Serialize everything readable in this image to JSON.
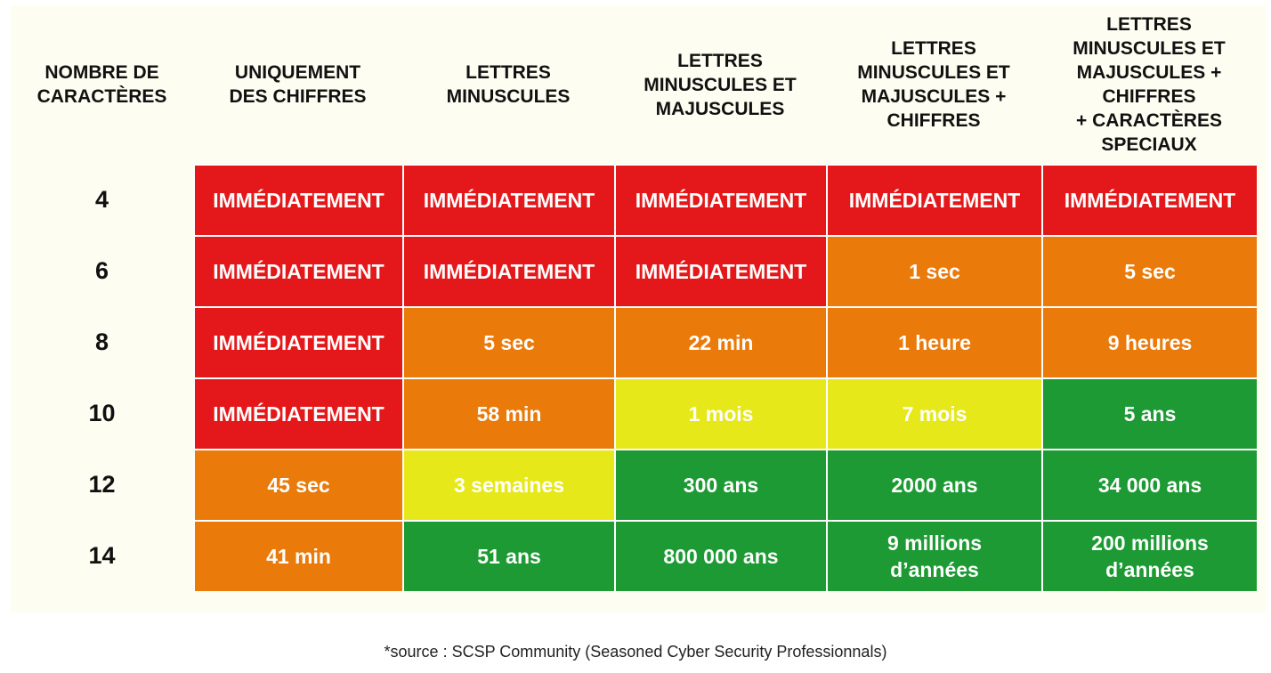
{
  "header": {
    "col0": "NOMBRE DE\nCARACTÈRES",
    "col1": "UNIQUEMENT\nDES CHIFFRES",
    "col2": "LETTRES\nMINUSCULES",
    "col3": "LETTRES\nMINUSCULES ET\nMAJUSCULES",
    "col4": "LETTRES\nMINUSCULES ET\nMAJUSCULES +\nCHIFFRES",
    "col5": "LETTRES\nMINUSCULES ET\nMAJUSCULES +\nCHIFFRES\n+ CARACTÈRES\nSPECIAUX"
  },
  "rows": [
    {
      "chars": "4",
      "c1": "IMMÉDIATEMENT",
      "c2": "IMMÉDIATEMENT",
      "c3": "IMMÉDIATEMENT",
      "c4": "IMMÉDIATEMENT",
      "c5": "IMMÉDIATEMENT"
    },
    {
      "chars": "6",
      "c1": "IMMÉDIATEMENT",
      "c2": "IMMÉDIATEMENT",
      "c3": "IMMÉDIATEMENT",
      "c4": "1 sec",
      "c5": "5 sec"
    },
    {
      "chars": "8",
      "c1": "IMMÉDIATEMENT",
      "c2": "5 sec",
      "c3": "22 min",
      "c4": "1 heure",
      "c5": "9 heures"
    },
    {
      "chars": "10",
      "c1": "IMMÉDIATEMENT",
      "c2": "58 min",
      "c3": "1 mois",
      "c4": "7 mois",
      "c5": "5 ans"
    },
    {
      "chars": "12",
      "c1": "45 sec",
      "c2": "3 semaines",
      "c3": "300 ans",
      "c4": "2000 ans",
      "c5": "34 000 ans"
    },
    {
      "chars": "14",
      "c1": "41 min",
      "c2": "51 ans",
      "c3": "800 000 ans",
      "c4": "9 millions\nd’années",
      "c5": "200 millions\nd’années"
    }
  ],
  "colors": {
    "red": "#e4181a",
    "orange": "#ea7a0a",
    "yellow": "#e6e81a",
    "green": "#1d9a34"
  },
  "source": "*source : SCSP Community (Seasoned Cyber Security Professionnals)"
}
